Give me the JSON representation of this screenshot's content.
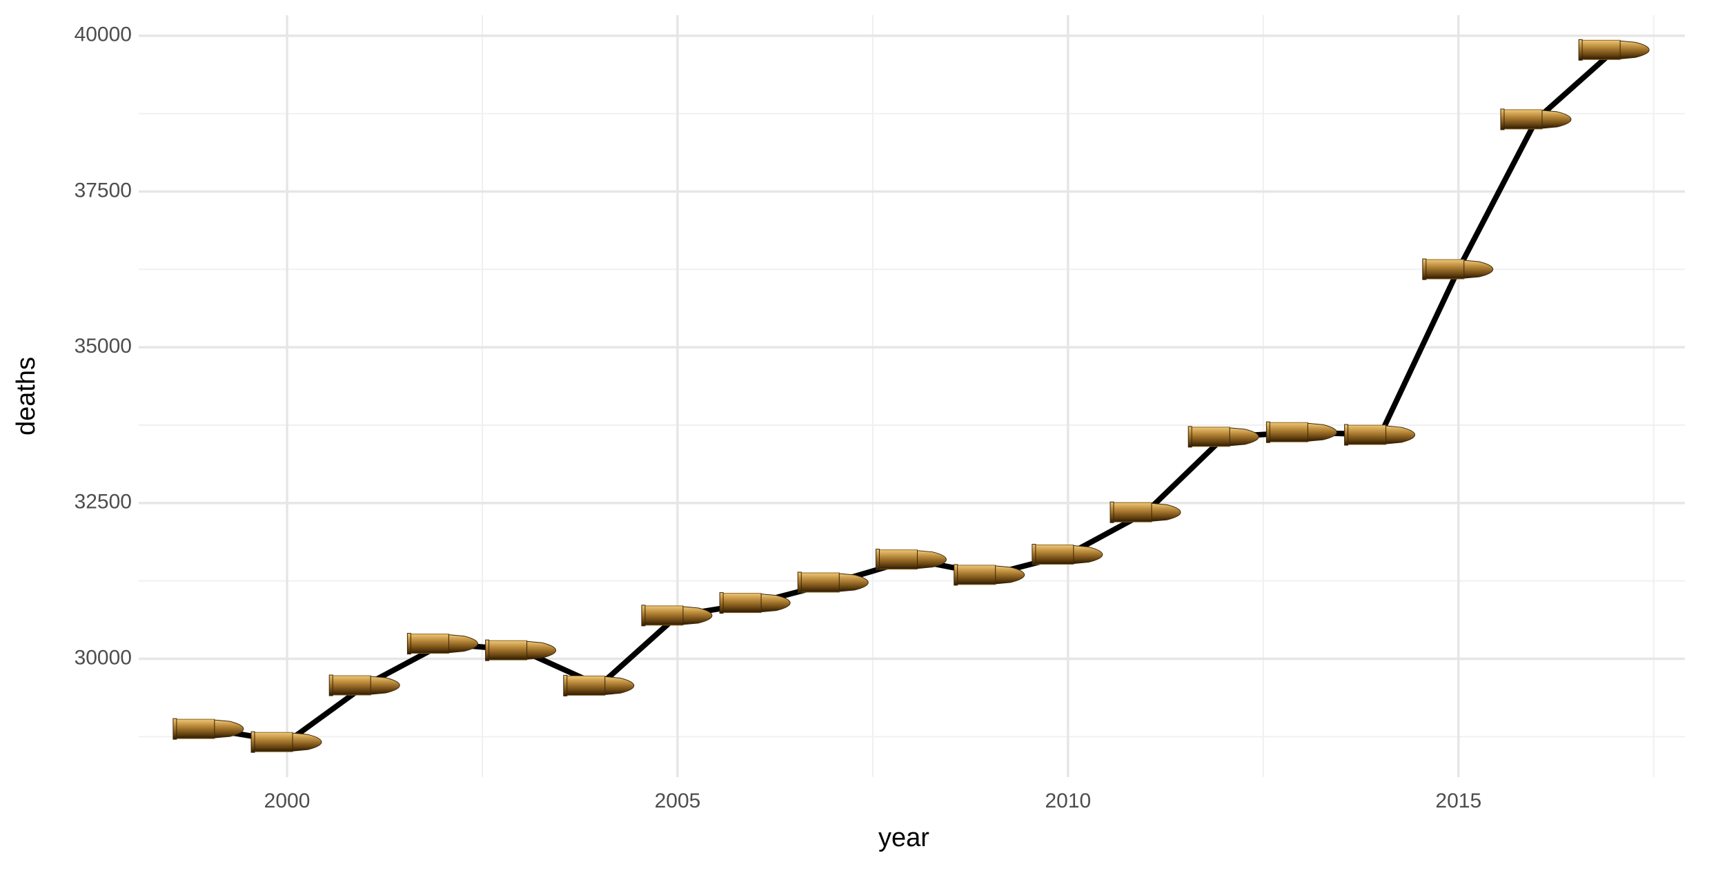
{
  "chart_data": {
    "type": "line",
    "x_label": "year",
    "y_label": "deaths",
    "x": [
      1999,
      2000,
      2001,
      2002,
      2003,
      2004,
      2005,
      2006,
      2007,
      2008,
      2009,
      2010,
      2011,
      2012,
      2013,
      2014,
      2015,
      2016,
      2017
    ],
    "values": [
      28874,
      28663,
      29573,
      30242,
      30136,
      29569,
      30694,
      30896,
      31224,
      31593,
      31347,
      31672,
      32351,
      33563,
      33636,
      33594,
      36252,
      38658,
      39773
    ],
    "color": "#000000",
    "marker_color": "#8a6420",
    "xlim": [
      1998.1,
      2017.9
    ],
    "xticks": [
      2000,
      2005,
      2010,
      2015
    ],
    "ylim": [
      28100,
      40330
    ],
    "yticks": [
      30000,
      32500,
      35000,
      37500,
      40000
    ],
    "grid": true,
    "minor_grid": true
  }
}
